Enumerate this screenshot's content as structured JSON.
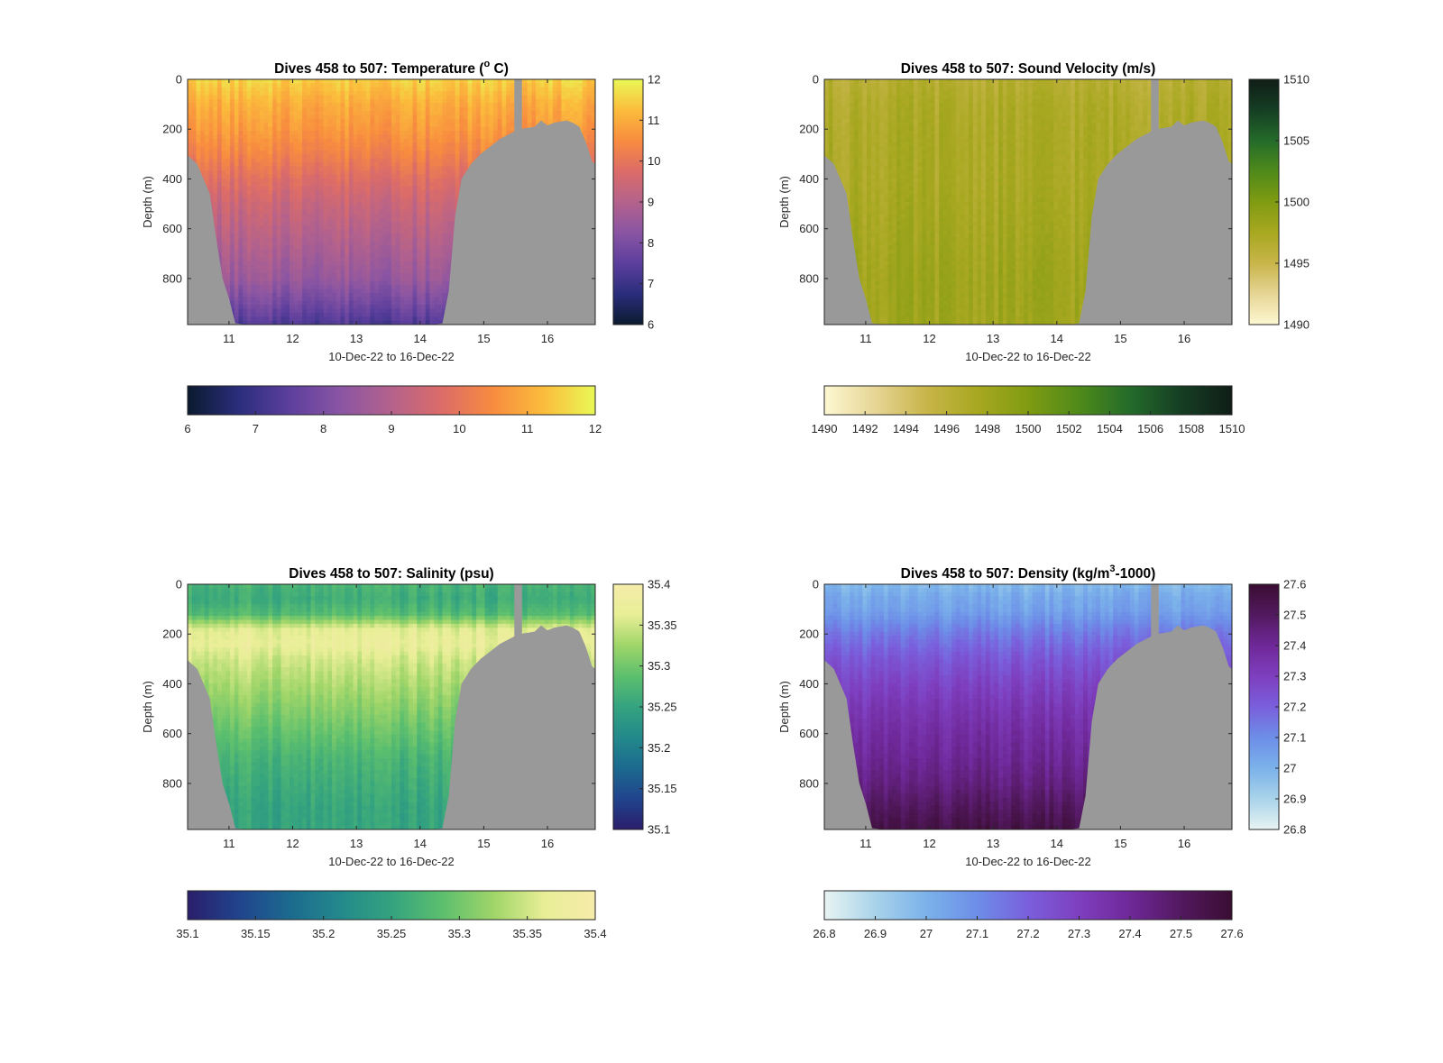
{
  "figure": {
    "background": "#ffffff",
    "seabed_color": "#999999"
  },
  "chart_data": [
    {
      "type": "heatmap",
      "title": "Dives 458 to 507: Temperature (",
      "title_sup": "o",
      "title_end": " C)",
      "xlabel": "10-Dec-22 to 16-Dec-22",
      "ylabel": "Depth (m)",
      "xlim": [
        10.35,
        16.75
      ],
      "ylim": [
        985,
        0
      ],
      "x_ticks": [
        11,
        12,
        13,
        14,
        15,
        16
      ],
      "x_tick_labels": [
        "11",
        "12",
        "13",
        "14",
        "15",
        "16"
      ],
      "y_ticks": [
        0,
        200,
        400,
        600,
        800
      ],
      "y_tick_labels": [
        "0",
        "200",
        "400",
        "600",
        "800"
      ],
      "colormap": [
        "#0b1a2e",
        "#2a2d7c",
        "#5c3f9d",
        "#8a55a3",
        "#b4628c",
        "#dc6c68",
        "#f88c3f",
        "#fbbd3c",
        "#e9f856"
      ],
      "colorbar_range": [
        6,
        12
      ],
      "colorbar_ticks": [
        "6",
        "7",
        "8",
        "9",
        "10",
        "11",
        "12"
      ],
      "h_colorbar_ticks": [
        "6",
        "7",
        "8",
        "9",
        "10",
        "11",
        "12"
      ],
      "value_profile": {
        "depths": [
          0,
          100,
          200,
          300,
          400,
          500,
          600,
          700,
          800,
          900,
          985
        ],
        "values": [
          11.5,
          11.0,
          10.7,
          10.3,
          9.8,
          9.4,
          9.1,
          8.8,
          8.5,
          7.9,
          7.3
        ]
      }
    },
    {
      "type": "heatmap",
      "title": "Dives 458 to 507: Sound Velocity (m/s)",
      "title_sup": "",
      "title_end": "",
      "xlabel": "10-Dec-22 to 16-Dec-22",
      "ylabel": "Depth (m)",
      "xlim": [
        10.35,
        16.75
      ],
      "ylim": [
        985,
        0
      ],
      "x_ticks": [
        11,
        12,
        13,
        14,
        15,
        16
      ],
      "x_tick_labels": [
        "11",
        "12",
        "13",
        "14",
        "15",
        "16"
      ],
      "y_ticks": [
        0,
        200,
        400,
        600,
        800
      ],
      "y_tick_labels": [
        "0",
        "200",
        "400",
        "600",
        "800"
      ],
      "colormap": [
        "#fdf8d2",
        "#e6d595",
        "#c8b54a",
        "#a8a820",
        "#7f9b12",
        "#4f8a1a",
        "#246b2a",
        "#153e23",
        "#101d17"
      ],
      "colorbar_range": [
        1490,
        1510
      ],
      "colorbar_ticks": [
        "1490",
        "1495",
        "1500",
        "1505",
        "1510"
      ],
      "h_colorbar_ticks": [
        "1490",
        "1492",
        "1494",
        "1496",
        "1498",
        "1500",
        "1502",
        "1504",
        "1506",
        "1508",
        "1510"
      ],
      "value_profile": {
        "depths": [
          0,
          100,
          200,
          300,
          400,
          500,
          600,
          700,
          800,
          900,
          985
        ],
        "values": [
          1496.3,
          1496.9,
          1497.1,
          1497.2,
          1497.2,
          1497.4,
          1497.6,
          1497.8,
          1498.0,
          1498.0,
          1497.9
        ]
      }
    },
    {
      "type": "heatmap",
      "title": "Dives 458 to 507: Salinity (psu)",
      "title_sup": "",
      "title_end": "",
      "xlabel": "10-Dec-22 to 16-Dec-22",
      "ylabel": "Depth (m)",
      "xlim": [
        10.35,
        16.75
      ],
      "ylim": [
        985,
        0
      ],
      "x_ticks": [
        11,
        12,
        13,
        14,
        15,
        16
      ],
      "x_tick_labels": [
        "11",
        "12",
        "13",
        "14",
        "15",
        "16"
      ],
      "y_ticks": [
        0,
        200,
        400,
        600,
        800
      ],
      "y_tick_labels": [
        "0",
        "200",
        "400",
        "600",
        "800"
      ],
      "colormap": [
        "#2a1e6b",
        "#21438d",
        "#1c6a8f",
        "#23898b",
        "#34a37f",
        "#5cbf6e",
        "#9fd569",
        "#e8ee96",
        "#f5ecaa"
      ],
      "colorbar_range": [
        35.1,
        35.4
      ],
      "colorbar_ticks": [
        "35.1",
        "35.15",
        "35.2",
        "35.25",
        "35.3",
        "35.35",
        "35.4"
      ],
      "h_colorbar_ticks": [
        "35.1",
        "35.15",
        "35.2",
        "35.25",
        "35.3",
        "35.35",
        "35.4"
      ],
      "value_profile": {
        "depths": [
          0,
          60,
          120,
          180,
          240,
          300,
          400,
          500,
          600,
          700,
          800,
          900,
          985
        ],
        "values": [
          35.27,
          35.26,
          35.28,
          35.36,
          35.37,
          35.35,
          35.33,
          35.31,
          35.29,
          35.27,
          35.26,
          35.25,
          35.25
        ]
      }
    },
    {
      "type": "heatmap",
      "title": "Dives 458 to 507: Density (kg/m",
      "title_sup": "3",
      "title_end": "-1000)",
      "xlabel": "10-Dec-22 to 16-Dec-22",
      "ylabel": "Depth (m)",
      "xlim": [
        10.35,
        16.75
      ],
      "ylim": [
        985,
        0
      ],
      "x_ticks": [
        11,
        12,
        13,
        14,
        15,
        16
      ],
      "x_tick_labels": [
        "11",
        "12",
        "13",
        "14",
        "15",
        "16"
      ],
      "y_ticks": [
        0,
        200,
        400,
        600,
        800
      ],
      "y_tick_labels": [
        "0",
        "200",
        "400",
        "600",
        "800"
      ],
      "colormap": [
        "#e8f4f2",
        "#a9d3ea",
        "#7bb2ea",
        "#6d8ee8",
        "#7a5fdc",
        "#7e3fbf",
        "#6f2898",
        "#52195f",
        "#3a0d32"
      ],
      "colorbar_range": [
        26.8,
        27.6
      ],
      "colorbar_ticks": [
        "26.8",
        "26.9",
        "27",
        "27.1",
        "27.2",
        "27.3",
        "27.4",
        "27.5",
        "27.6"
      ],
      "h_colorbar_ticks": [
        "26.8",
        "26.9",
        "27",
        "27.1",
        "27.2",
        "27.3",
        "27.4",
        "27.5",
        "27.6"
      ],
      "value_profile": {
        "depths": [
          0,
          50,
          100,
          200,
          300,
          400,
          500,
          600,
          700,
          800,
          900,
          985
        ],
        "values": [
          26.97,
          27.02,
          27.04,
          27.14,
          27.22,
          27.28,
          27.33,
          27.37,
          27.4,
          27.44,
          27.5,
          27.55
        ]
      }
    }
  ],
  "transect": {
    "x": [
      10.35,
      10.5,
      10.6,
      10.7,
      10.8,
      10.9,
      11.0,
      11.1,
      11.3,
      11.5,
      12.0,
      12.5,
      13.0,
      13.5,
      14.0,
      14.2,
      14.35,
      14.45,
      14.55,
      14.65,
      14.8,
      14.95,
      15.1,
      15.25,
      15.4,
      15.55,
      15.7,
      15.8,
      15.9,
      16.0,
      16.1,
      16.2,
      16.3,
      16.4,
      16.5,
      16.6,
      16.7,
      16.75
    ],
    "seabed_depth": [
      305,
      340,
      400,
      460,
      640,
      800,
      880,
      980,
      985,
      985,
      985,
      985,
      985,
      985,
      985,
      985,
      980,
      850,
      550,
      400,
      340,
      300,
      270,
      240,
      220,
      200,
      195,
      190,
      165,
      185,
      175,
      170,
      165,
      175,
      190,
      250,
      330,
      340
    ],
    "gap_x": [
      15.48,
      15.6
    ]
  }
}
